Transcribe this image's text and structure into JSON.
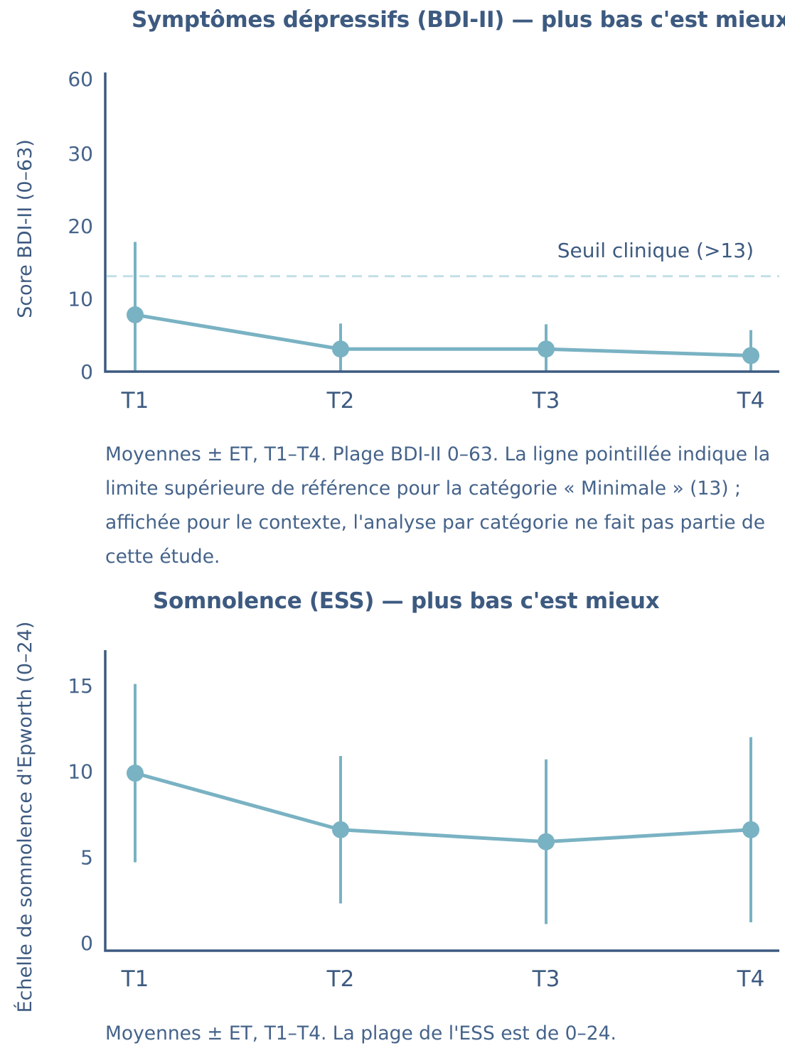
{
  "chart_data": [
    {
      "type": "line",
      "title": "Symptômes dépressifs (BDI-II) — plus bas c'est mieux",
      "xlabel": "",
      "ylabel": "Score BDI-II (0–63)",
      "categories": [
        "T1",
        "T2",
        "T3",
        "T4"
      ],
      "series": [
        {
          "name": "BDI-II",
          "values": [
            7.8,
            3.1,
            3.1,
            2.2
          ],
          "error": [
            10,
            3.5,
            3.4,
            3.5
          ]
        }
      ],
      "y_ticks": [
        0,
        10,
        20,
        30,
        60
      ],
      "y_tick_labels": [
        "0",
        "10",
        "20",
        "30",
        "60"
      ],
      "threshold": {
        "value": 13,
        "label": "Seuil clinique (>13)"
      },
      "caption": "Moyennes ± ET, T1–T4. Plage BDI-II 0–63. La ligne pointillée indique la limite supérieure de référence pour la catégorie « Minimale » (13) ; affichée pour le contexte, l'analyse par catégorie ne fait pas partie de cette étude."
    },
    {
      "type": "line",
      "title": "Somnolence (ESS) — plus bas c'est mieux",
      "xlabel": "",
      "ylabel": "Échelle de somnolence d'Epworth (0–24)",
      "categories": [
        "T1",
        "T2",
        "T3",
        "T4"
      ],
      "series": [
        {
          "name": "ESS",
          "values": [
            9.9,
            6.6,
            5.9,
            6.6
          ],
          "error": [
            5.2,
            4.3,
            4.8,
            5.4
          ]
        }
      ],
      "ylim": [
        0,
        17.5
      ],
      "y_ticks": [
        0,
        5,
        10,
        15
      ],
      "y_tick_labels": [
        "0",
        "5",
        "10",
        "15"
      ],
      "caption": "Moyennes ± ET, T1–T4. La plage de l'ESS est de 0–24."
    }
  ]
}
